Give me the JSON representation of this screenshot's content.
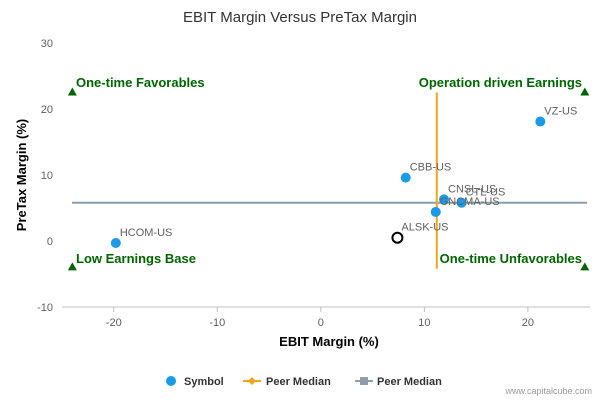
{
  "chart_data": {
    "type": "scatter",
    "title": "EBIT Margin Versus PreTax Margin",
    "xlabel": "EBIT Margin (%)",
    "ylabel": "PreTax Margin (%)",
    "xlim": [
      -25,
      26
    ],
    "ylim": [
      -10,
      30
    ],
    "x_ticks": [
      -20,
      -10,
      0,
      10,
      20
    ],
    "y_ticks": [
      -10,
      0,
      10,
      20,
      30
    ],
    "grid": false,
    "points": [
      {
        "label": "VZ-US",
        "x": 21.2,
        "y": 18.1,
        "style": "filled"
      },
      {
        "label": "CBB-US",
        "x": 8.2,
        "y": 9.6,
        "style": "filled"
      },
      {
        "label": "CNSL-US",
        "x": 11.9,
        "y": 6.3,
        "style": "filled"
      },
      {
        "label": "CTL-US",
        "x": 13.6,
        "y": 5.8,
        "style": "filled"
      },
      {
        "label": "GNCMA-US",
        "x": 11.1,
        "y": 4.4,
        "style": "filled"
      },
      {
        "label": "ALSK-US",
        "x": 7.4,
        "y": 0.5,
        "style": "hollow"
      },
      {
        "label": "HCOM-US",
        "x": -19.8,
        "y": -0.3,
        "style": "filled"
      }
    ],
    "peer_median_x": 11.2,
    "peer_median_x_range": [
      -4.2,
      22.5
    ],
    "peer_median_y": 5.8,
    "quadrant_labels": {
      "top_left": "One-time Favorables",
      "top_right": "Operation driven Earnings",
      "bottom_left": "Low Earnings Base",
      "bottom_right": "One-time Unfavorables"
    },
    "legend": [
      {
        "name": "Symbol",
        "marker": "circle",
        "color": "#1a9be8"
      },
      {
        "name": "Peer Median",
        "marker": "diamond",
        "color": "#f2a41c"
      },
      {
        "name": "Peer Median",
        "marker": "square",
        "color": "#8e9bab"
      }
    ],
    "legend_position": "bottom-center",
    "colors": {
      "point": "#1a9be8",
      "hollow_stroke": "#000000",
      "median_x": "#f2a41c",
      "median_y": "#8e9bab",
      "quadrant_text": "#006400",
      "axis": "#c0c0c0"
    }
  },
  "watermark": "www.capitalcube.com"
}
